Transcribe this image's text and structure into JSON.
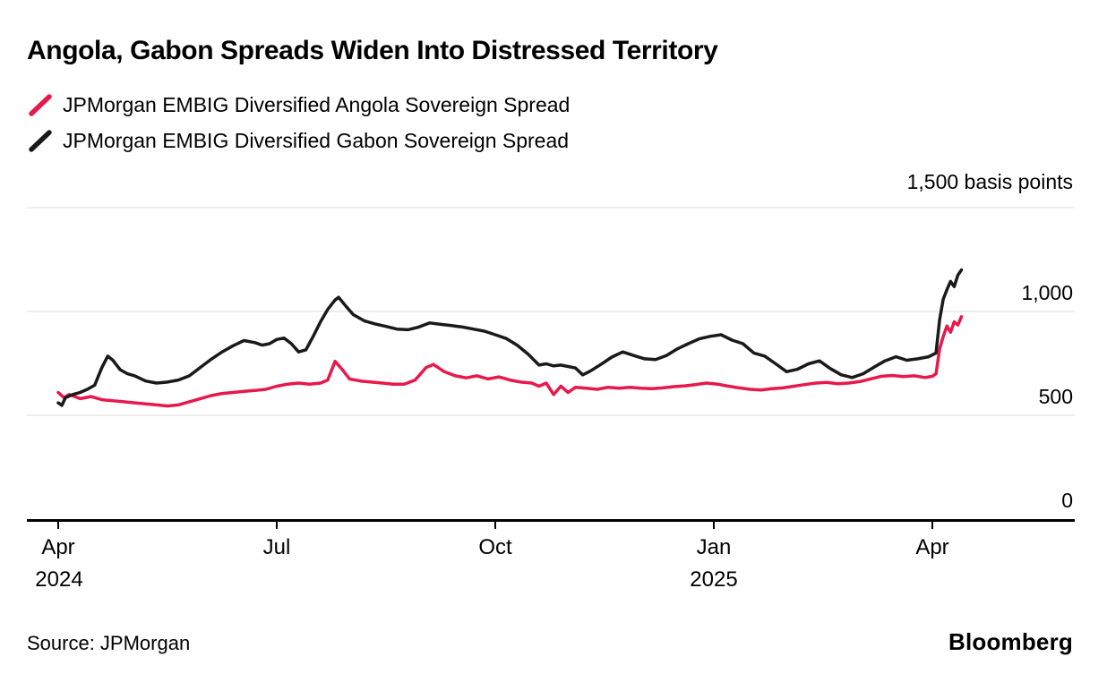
{
  "footer": {
    "source": "Source: JPMorgan",
    "brand": "Bloomberg"
  },
  "chart_data": {
    "type": "line",
    "title": "Angola, Gabon Spreads Widen Into Distressed Territory",
    "xlabel": "",
    "ylabel": "basis points",
    "ylim": [
      0,
      1500
    ],
    "xlim": [
      0,
      12.5
    ],
    "x_unit": "months since Apr 2024",
    "grid": true,
    "legend_position": "top-left",
    "yticks": [
      {
        "value": 0,
        "label": "0"
      },
      {
        "value": 500,
        "label": "500"
      },
      {
        "value": 1000,
        "label": "1,000"
      },
      {
        "value": 1500,
        "label": "1,500 basis points"
      }
    ],
    "xticks": [
      {
        "m": 0,
        "label": "Apr",
        "year": "2024"
      },
      {
        "m": 3,
        "label": "Jul"
      },
      {
        "m": 6,
        "label": "Oct"
      },
      {
        "m": 9,
        "label": "Jan",
        "year": "2025"
      },
      {
        "m": 12,
        "label": "Apr"
      }
    ],
    "series": [
      {
        "name": "JPMorgan EMBIG Diversified Angola Sovereign Spread",
        "color": "#e8184c",
        "x": [
          0,
          0.08,
          0.15,
          0.3,
          0.45,
          0.6,
          0.75,
          0.9,
          1.05,
          1.2,
          1.35,
          1.5,
          1.65,
          1.8,
          1.95,
          2.1,
          2.25,
          2.4,
          2.55,
          2.7,
          2.85,
          3.0,
          3.15,
          3.3,
          3.45,
          3.6,
          3.7,
          3.8,
          3.9,
          4.0,
          4.15,
          4.3,
          4.45,
          4.6,
          4.75,
          4.9,
          5.05,
          5.15,
          5.3,
          5.45,
          5.6,
          5.75,
          5.9,
          6.05,
          6.2,
          6.35,
          6.5,
          6.6,
          6.7,
          6.8,
          6.9,
          7.0,
          7.1,
          7.25,
          7.4,
          7.55,
          7.7,
          7.85,
          8.0,
          8.15,
          8.3,
          8.45,
          8.6,
          8.75,
          8.9,
          9.05,
          9.2,
          9.35,
          9.5,
          9.65,
          9.8,
          9.95,
          10.1,
          10.25,
          10.4,
          10.55,
          10.7,
          10.85,
          11.0,
          11.15,
          11.3,
          11.45,
          11.6,
          11.75,
          11.9,
          12.0,
          12.05,
          12.1,
          12.15,
          12.2,
          12.25,
          12.3,
          12.35,
          12.4
        ],
        "values": [
          610,
          585,
          600,
          580,
          590,
          575,
          570,
          565,
          560,
          555,
          550,
          545,
          550,
          565,
          580,
          595,
          605,
          610,
          615,
          620,
          625,
          640,
          650,
          655,
          650,
          655,
          670,
          760,
          720,
          675,
          665,
          660,
          655,
          650,
          650,
          670,
          730,
          745,
          710,
          690,
          680,
          690,
          675,
          685,
          670,
          660,
          655,
          640,
          655,
          600,
          640,
          610,
          635,
          630,
          625,
          635,
          630,
          635,
          630,
          628,
          632,
          638,
          642,
          648,
          655,
          650,
          640,
          632,
          625,
          622,
          628,
          632,
          640,
          648,
          655,
          658,
          652,
          655,
          662,
          675,
          688,
          692,
          686,
          690,
          682,
          688,
          700,
          820,
          880,
          930,
          900,
          950,
          935,
          975
        ]
      },
      {
        "name": "JPMorgan EMBIG Diversified Gabon Sovereign Spread",
        "color": "#1a1a1a",
        "x": [
          0,
          0.05,
          0.1,
          0.2,
          0.3,
          0.4,
          0.5,
          0.6,
          0.68,
          0.75,
          0.85,
          0.95,
          1.05,
          1.2,
          1.35,
          1.5,
          1.65,
          1.8,
          1.95,
          2.1,
          2.25,
          2.4,
          2.55,
          2.7,
          2.8,
          2.9,
          3.0,
          3.1,
          3.2,
          3.3,
          3.4,
          3.5,
          3.6,
          3.7,
          3.8,
          3.85,
          3.95,
          4.05,
          4.2,
          4.35,
          4.5,
          4.65,
          4.8,
          4.95,
          5.1,
          5.25,
          5.4,
          5.55,
          5.7,
          5.85,
          6.0,
          6.15,
          6.3,
          6.45,
          6.6,
          6.7,
          6.8,
          6.9,
          7.0,
          7.1,
          7.2,
          7.3,
          7.45,
          7.6,
          7.75,
          7.9,
          8.05,
          8.2,
          8.35,
          8.5,
          8.65,
          8.8,
          8.95,
          9.1,
          9.25,
          9.4,
          9.55,
          9.7,
          9.85,
          10.0,
          10.15,
          10.3,
          10.45,
          10.6,
          10.75,
          10.9,
          11.05,
          11.2,
          11.35,
          11.5,
          11.65,
          11.8,
          11.95,
          12.05,
          12.1,
          12.15,
          12.2,
          12.25,
          12.3,
          12.35,
          12.4
        ],
        "values": [
          560,
          548,
          585,
          600,
          610,
          625,
          645,
          730,
          785,
          765,
          720,
          700,
          690,
          665,
          655,
          660,
          670,
          690,
          730,
          770,
          805,
          835,
          860,
          850,
          838,
          845,
          865,
          872,
          845,
          805,
          815,
          880,
          950,
          1010,
          1055,
          1068,
          1025,
          985,
          955,
          940,
          928,
          915,
          912,
          925,
          945,
          938,
          932,
          925,
          915,
          905,
          888,
          870,
          838,
          795,
          742,
          748,
          738,
          742,
          735,
          728,
          695,
          712,
          745,
          780,
          805,
          788,
          772,
          768,
          788,
          820,
          845,
          868,
          880,
          888,
          862,
          845,
          800,
          785,
          748,
          710,
          722,
          748,
          762,
          725,
          695,
          682,
          700,
          732,
          762,
          782,
          765,
          772,
          782,
          800,
          960,
          1060,
          1105,
          1145,
          1120,
          1175,
          1200
        ]
      }
    ]
  }
}
